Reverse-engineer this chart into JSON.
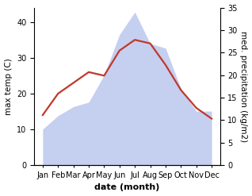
{
  "months": [
    "Jan",
    "Feb",
    "Mar",
    "Apr",
    "May",
    "Jun",
    "Jul",
    "Aug",
    "Sep",
    "Oct",
    "Nov",
    "Dec"
  ],
  "temperature": [
    14,
    20,
    23,
    26,
    25,
    32,
    35,
    34,
    28,
    21,
    16,
    13
  ],
  "precipitation": [
    8,
    11,
    13,
    14,
    20,
    29,
    34,
    27,
    26,
    17,
    12,
    12
  ],
  "temp_color": "#c0392b",
  "precip_fill_color": "#c5cff0",
  "background_color": "#ffffff",
  "ylabel_left": "max temp (C)",
  "ylabel_right": "med. precipitation (kg/m2)",
  "xlabel": "date (month)",
  "ylim_left": [
    0,
    44
  ],
  "ylim_right": [
    0,
    35
  ],
  "yticks_left": [
    0,
    10,
    20,
    30,
    40
  ],
  "yticks_right": [
    0,
    5,
    10,
    15,
    20,
    25,
    30,
    35
  ],
  "temp_linewidth": 1.6,
  "xlabel_fontsize": 8,
  "ylabel_fontsize": 7.5,
  "tick_fontsize": 7
}
